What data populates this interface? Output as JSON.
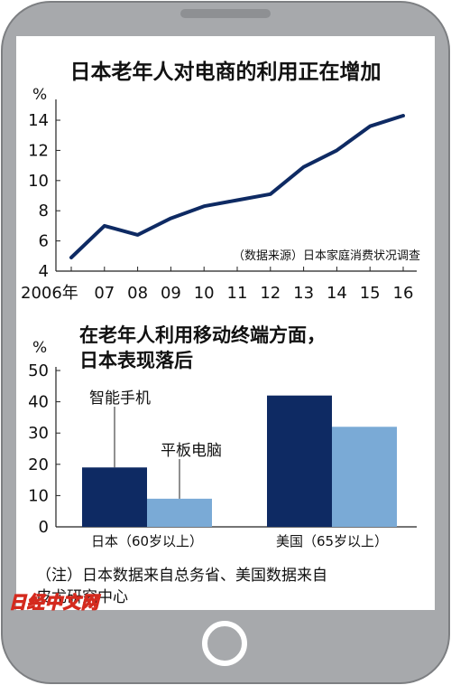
{
  "colors": {
    "frame": "#a7a9ac",
    "frame_edge": "#7d7f82",
    "screen": "#ffffff",
    "line": "#0e2a63",
    "bar_smartphone": "#0e2a63",
    "bar_tablet": "#7aaad6",
    "logo": "#d42a1e"
  },
  "chart_data": [
    {
      "type": "line",
      "title": "日本老年人对电商的利用正在增加",
      "y_unit": "%",
      "x": [
        2006,
        2007,
        2008,
        2009,
        2010,
        2011,
        2012,
        2013,
        2014,
        2015,
        2016
      ],
      "x_tick_labels": [
        "2006年",
        "07",
        "08",
        "09",
        "10",
        "11",
        "12",
        "13",
        "14",
        "15",
        "16"
      ],
      "y_ticks": [
        4,
        6,
        8,
        10,
        12,
        14
      ],
      "ylim": [
        4,
        14.9
      ],
      "series": [
        {
          "values": [
            4.9,
            7.0,
            6.4,
            7.5,
            8.3,
            8.7,
            9.1,
            10.9,
            12.0,
            13.6,
            14.3
          ]
        }
      ],
      "annotation": "（数据来源）日本家庭消费状况调查",
      "grid": false
    },
    {
      "type": "bar",
      "title_lines": [
        "在老年人利用移动终端方面，",
        "日本表现落后"
      ],
      "y_unit": "%",
      "categories": [
        "日本（60岁以上）",
        "美国（65岁以上）"
      ],
      "series": [
        {
          "name": "智能手机",
          "values": [
            19,
            42
          ]
        },
        {
          "name": "平板电脑",
          "values": [
            9,
            32
          ]
        }
      ],
      "y_ticks": [
        0,
        10,
        20,
        30,
        40,
        50
      ],
      "ylim": [
        0,
        50
      ],
      "grid": false,
      "legend_placement": "callout labels on Japan bars"
    }
  ],
  "note_lines": [
    "（注）日本数据来自总务省、美国数据来自",
    "皮尤研究中心"
  ],
  "logo_text": "日经中文网"
}
